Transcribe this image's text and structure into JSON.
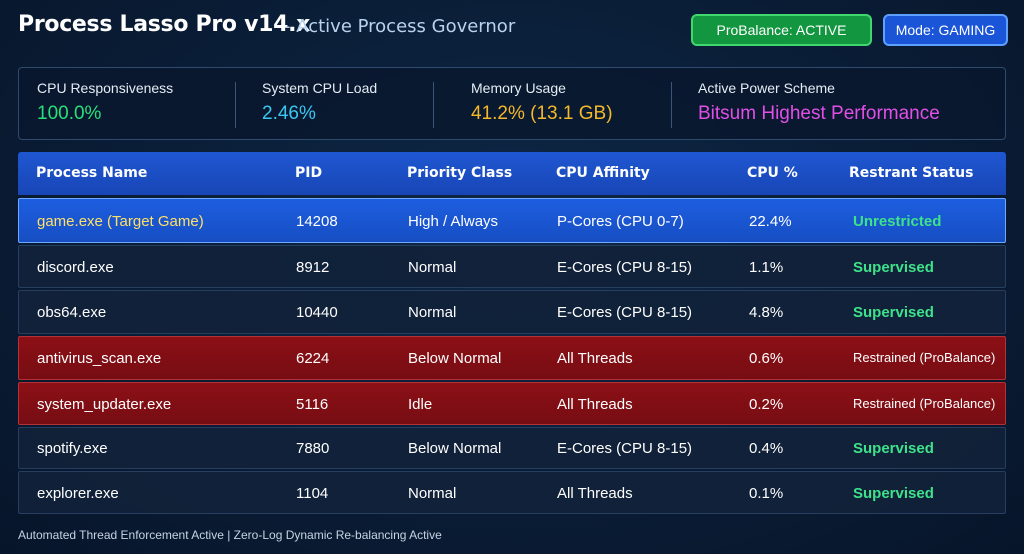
{
  "header": {
    "title": "Process Lasso Pro v14.x",
    "subtitle": "- Active Process Governor",
    "probalance_badge": "ProBalance: ACTIVE",
    "mode_badge": "Mode: GAMING"
  },
  "stats": {
    "cpu_responsiveness": {
      "label": "CPU Responsiveness",
      "value": "100.0%",
      "color": "#27e07a"
    },
    "system_cpu_load": {
      "label": "System CPU Load",
      "value": "2.46%",
      "color": "#38c8f2"
    },
    "memory_usage": {
      "label": "Memory Usage",
      "value": "41.2% (13.1 GB)",
      "color": "#f5b82a"
    },
    "power_scheme": {
      "label": "Active Power Scheme",
      "value": "Bitsum Highest Performance",
      "color": "#e04fe6"
    }
  },
  "table": {
    "columns": [
      "Process Name",
      "PID",
      "Priority Class",
      "CPU Affinity",
      "CPU %",
      "Restrant Status"
    ],
    "rows": [
      {
        "name": "game.exe (Target Game)",
        "pid": "14208",
        "priority": "High / Always",
        "affinity": "P-Cores (CPU 0-7)",
        "cpu": "22.4%",
        "status": "Unrestricted",
        "kind": "target"
      },
      {
        "name": "discord.exe",
        "pid": "8912",
        "priority": "Normal",
        "affinity": "E-Cores (CPU 8-15)",
        "cpu": "1.1%",
        "status": "Supervised",
        "kind": "normal"
      },
      {
        "name": "obs64.exe",
        "pid": "10440",
        "priority": "Normal",
        "affinity": "E-Cores (CPU 8-15)",
        "cpu": "4.8%",
        "status": "Supervised",
        "kind": "normal"
      },
      {
        "name": "antivirus_scan.exe",
        "pid": "6224",
        "priority": "Below Normal",
        "affinity": "All Threads",
        "cpu": "0.6%",
        "status": "Restrained (ProBalance)",
        "kind": "restrained"
      },
      {
        "name": "system_updater.exe",
        "pid": "5116",
        "priority": "Idle",
        "affinity": "All Threads",
        "cpu": "0.2%",
        "status": "Restrained (ProBalance)",
        "kind": "restrained"
      },
      {
        "name": "spotify.exe",
        "pid": "7880",
        "priority": "Below Normal",
        "affinity": "E-Cores (CPU 8-15)",
        "cpu": "0.4%",
        "status": "Supervised",
        "kind": "normal"
      },
      {
        "name": "explorer.exe",
        "pid": "1104",
        "priority": "Normal",
        "affinity": "All Threads",
        "cpu": "0.1%",
        "status": "Supervised",
        "kind": "normal"
      }
    ]
  },
  "colors": {
    "target_name": "#ffe066",
    "status_green": "#3ee28a",
    "restrained_text": "#ffffff"
  },
  "footer": {
    "text": "Automated Thread Enforcement Active | Zero-Log Dynamic Re-balancing Active"
  }
}
